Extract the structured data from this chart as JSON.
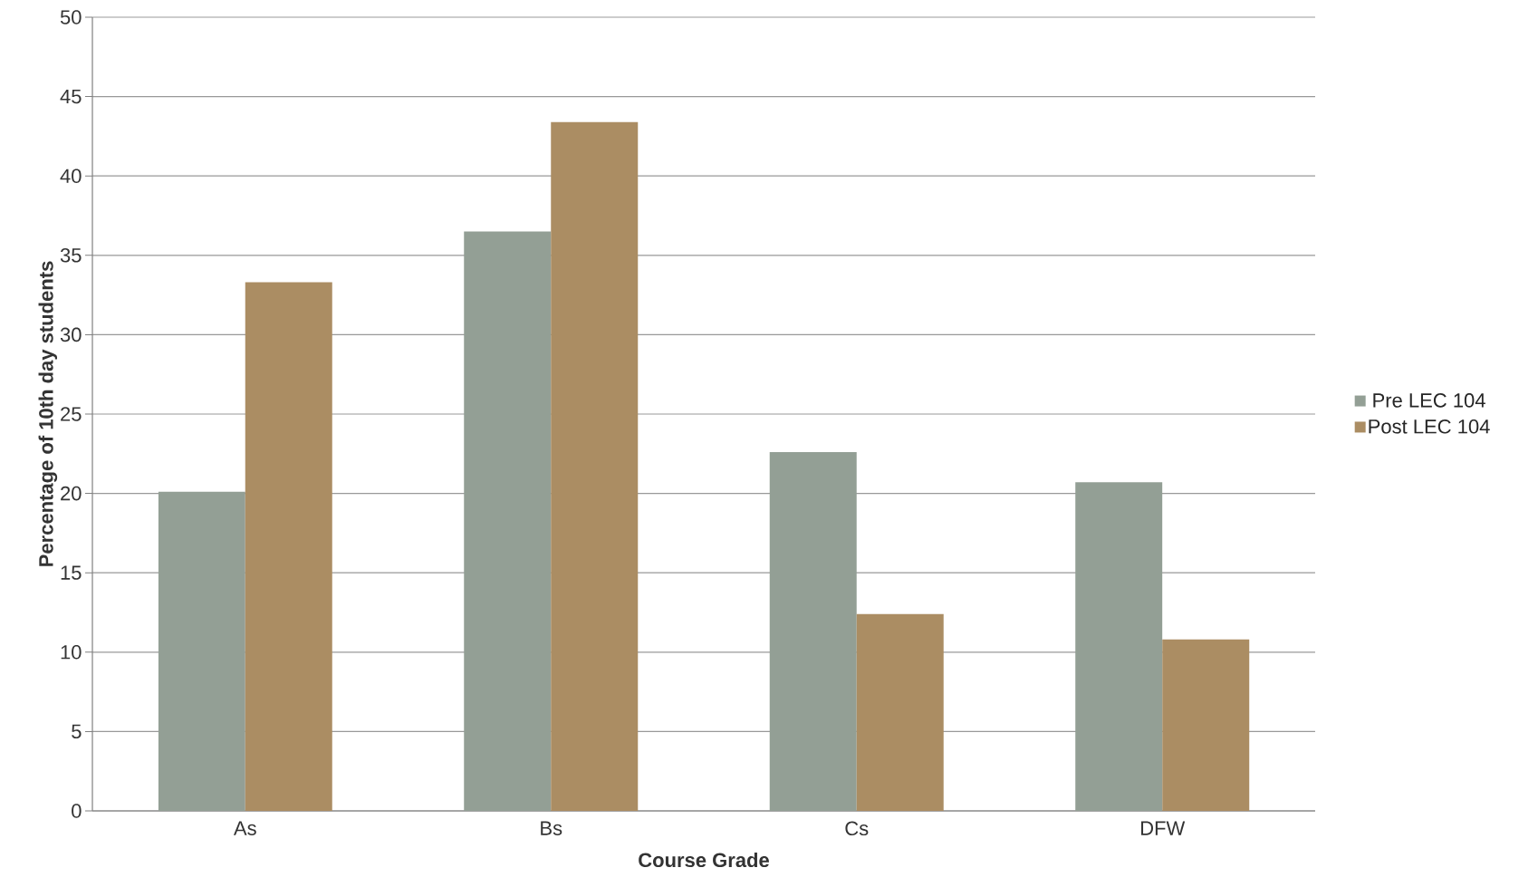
{
  "chart_data": {
    "type": "bar",
    "xlabel": "Course Grade",
    "ylabel": "Percentage of 10th day students",
    "categories": [
      "As",
      "Bs",
      "Cs",
      "DFW"
    ],
    "series": [
      {
        "name": "Pre LEC 104",
        "color": "#939f95",
        "values": [
          20.1,
          36.5,
          22.6,
          20.7
        ]
      },
      {
        "name": "Post LEC 104",
        "color": "#ab8d63",
        "values": [
          33.3,
          43.4,
          12.4,
          10.8
        ]
      }
    ],
    "ylim": [
      0,
      50
    ],
    "yticks": [
      0,
      5,
      10,
      15,
      20,
      25,
      30,
      35,
      40,
      45,
      50
    ],
    "grid": "y",
    "legend": "right"
  }
}
